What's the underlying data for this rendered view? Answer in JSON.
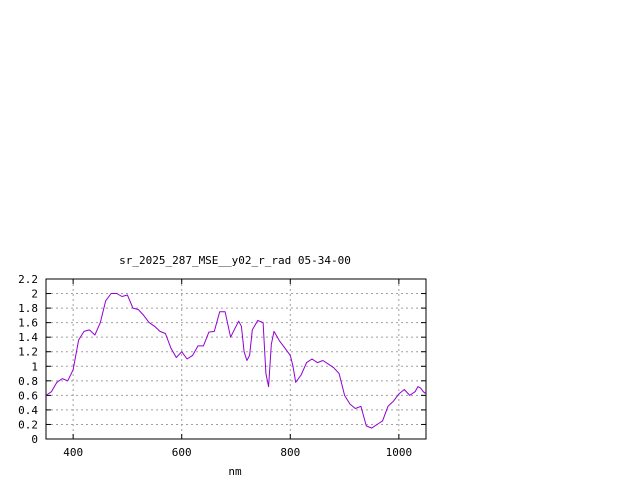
{
  "chart_data": {
    "type": "line",
    "title": "sr_2025_287_MSE__y02_r_rad 05-34-00",
    "xlabel": "nm",
    "ylabel": "",
    "xlim": [
      350,
      1050
    ],
    "ylim": [
      0,
      2.2
    ],
    "x_ticks": [
      400,
      600,
      800,
      1000
    ],
    "y_ticks": [
      0,
      0.2,
      0.4,
      0.6,
      0.8,
      1,
      1.2,
      1.4,
      1.6,
      1.8,
      2,
      2.2
    ],
    "grid": true,
    "legend": "none",
    "series": [
      {
        "color": "#9400d3",
        "x": [
          350,
          360,
          370,
          380,
          390,
          400,
          410,
          420,
          430,
          440,
          450,
          460,
          470,
          480,
          490,
          500,
          510,
          520,
          530,
          540,
          550,
          560,
          570,
          580,
          590,
          600,
          610,
          620,
          630,
          640,
          650,
          660,
          670,
          680,
          690,
          700,
          705,
          710,
          715,
          720,
          725,
          730,
          740,
          750,
          755,
          760,
          765,
          770,
          780,
          790,
          800,
          805,
          810,
          820,
          830,
          840,
          850,
          860,
          870,
          880,
          890,
          900,
          910,
          920,
          930,
          940,
          950,
          960,
          970,
          980,
          990,
          1000,
          1010,
          1020,
          1030,
          1035,
          1040,
          1045,
          1050
        ],
        "values": [
          0.6,
          0.65,
          0.78,
          0.83,
          0.8,
          0.95,
          1.36,
          1.48,
          1.5,
          1.43,
          1.6,
          1.9,
          2.0,
          2.0,
          1.96,
          1.98,
          1.8,
          1.78,
          1.7,
          1.6,
          1.55,
          1.48,
          1.45,
          1.25,
          1.12,
          1.2,
          1.1,
          1.15,
          1.28,
          1.28,
          1.47,
          1.48,
          1.75,
          1.75,
          1.4,
          1.55,
          1.62,
          1.55,
          1.2,
          1.08,
          1.15,
          1.5,
          1.63,
          1.6,
          0.9,
          0.72,
          1.3,
          1.48,
          1.35,
          1.25,
          1.15,
          1.0,
          0.78,
          0.88,
          1.05,
          1.1,
          1.05,
          1.08,
          1.03,
          0.98,
          0.9,
          0.6,
          0.48,
          0.42,
          0.45,
          0.18,
          0.15,
          0.2,
          0.25,
          0.45,
          0.52,
          0.62,
          0.68,
          0.6,
          0.65,
          0.72,
          0.7,
          0.65,
          0.62
        ]
      }
    ]
  }
}
